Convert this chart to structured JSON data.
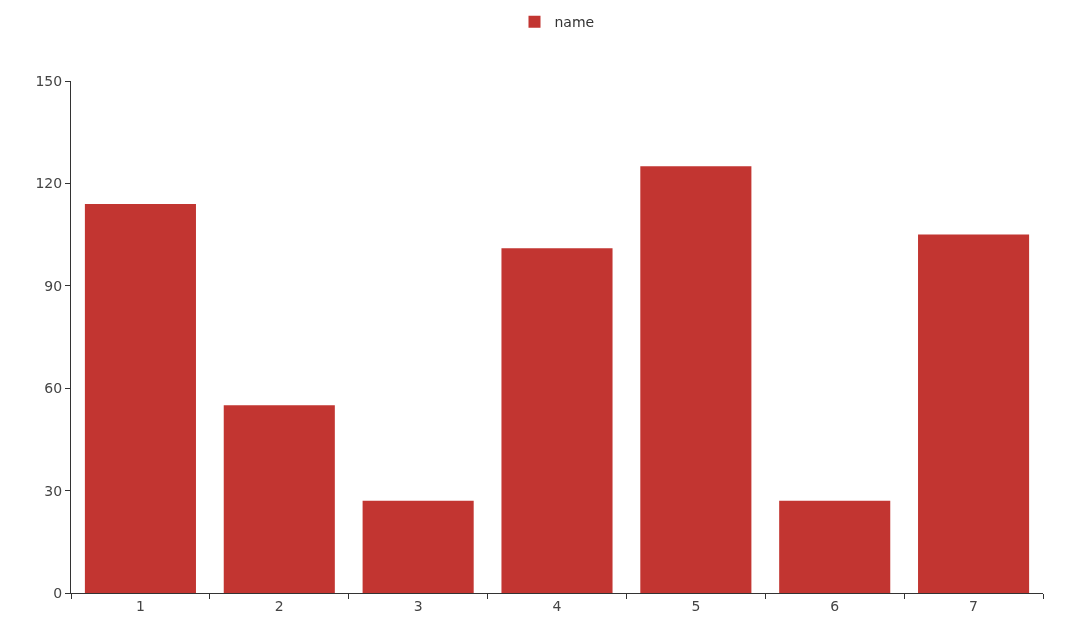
{
  "chart_data": {
    "type": "bar",
    "categories": [
      "1",
      "2",
      "3",
      "4",
      "5",
      "6",
      "7"
    ],
    "series": [
      {
        "name": "name",
        "color": "#c23531",
        "values": [
          114,
          55,
          27,
          101,
          125,
          27,
          105
        ]
      }
    ],
    "ylim": [
      0,
      150
    ],
    "yticks": [
      0,
      30,
      60,
      90,
      120,
      150
    ],
    "legend": "top"
  }
}
